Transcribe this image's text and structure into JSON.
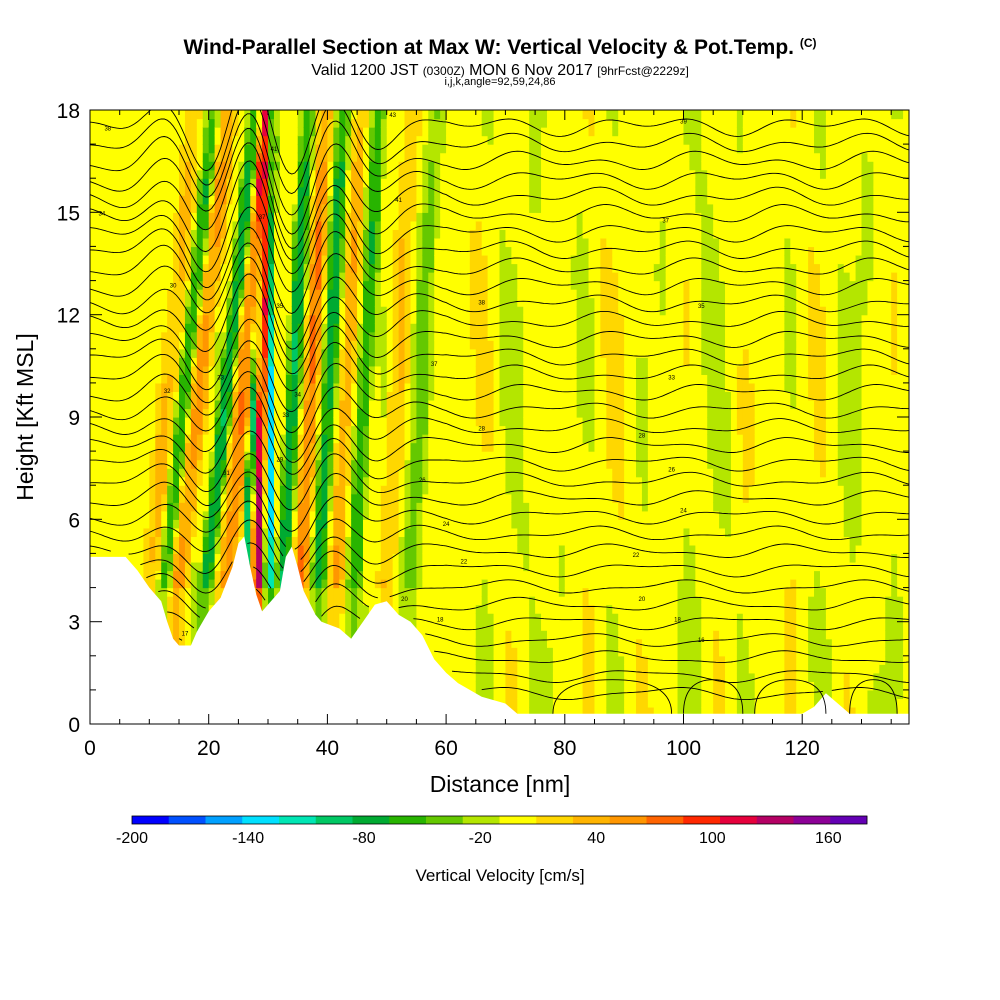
{
  "header": {
    "title": "Wind-Parallel Section at Max W: Vertical Velocity & Pot.Temp.",
    "title_mark": "(C)",
    "valid_prefix": "Valid 1200 JST",
    "valid_utc": "(0300Z)",
    "valid_date": "MON 6 Nov 2017",
    "forecast": "[9hrFcst@2229z]",
    "indices": "i,j,k,angle=92,59,24,86"
  },
  "chart_data": {
    "type": "heatmap",
    "xlabel": "Distance [nm]",
    "ylabel": "Height [Kft MSL]",
    "xlim": [
      0,
      138
    ],
    "ylim": [
      0,
      18
    ],
    "x_ticks": [
      0,
      20,
      40,
      60,
      80,
      100,
      120
    ],
    "y_ticks": [
      0,
      3,
      6,
      9,
      12,
      15,
      18
    ],
    "colorbar": {
      "label": "Vertical Velocity [cm/s]",
      "tick_labels": [
        -200,
        -140,
        -80,
        -20,
        40,
        100,
        160
      ],
      "min": -200,
      "max": 180,
      "step": 20,
      "colors": [
        "#0000ff",
        "#0050ff",
        "#00a0ff",
        "#00e0ff",
        "#00e6b4",
        "#00c864",
        "#00aa32",
        "#28b400",
        "#64c800",
        "#b4e600",
        "#ffff00",
        "#ffd700",
        "#ffb400",
        "#ff9600",
        "#ff6400",
        "#ff2800",
        "#e6003c",
        "#b40064",
        "#8c0096",
        "#6400b4"
      ]
    },
    "terrain_kft": [
      [
        0,
        4.9
      ],
      [
        6,
        4.9
      ],
      [
        8,
        4.5
      ],
      [
        10,
        4.0
      ],
      [
        12,
        3.6
      ],
      [
        13,
        3.0
      ],
      [
        14,
        2.5
      ],
      [
        15,
        2.3
      ],
      [
        17,
        2.3
      ],
      [
        18,
        2.7
      ],
      [
        20,
        3.3
      ],
      [
        22,
        3.7
      ],
      [
        24,
        4.6
      ],
      [
        25,
        5.3
      ],
      [
        26,
        5.5
      ],
      [
        27,
        4.6
      ],
      [
        28,
        3.8
      ],
      [
        29,
        3.3
      ],
      [
        30,
        3.5
      ],
      [
        32,
        3.9
      ],
      [
        33,
        4.9
      ],
      [
        34,
        5.2
      ],
      [
        35,
        4.6
      ],
      [
        36,
        3.9
      ],
      [
        38,
        3.2
      ],
      [
        39,
        3.0
      ],
      [
        42,
        2.8
      ],
      [
        44,
        2.5
      ],
      [
        46,
        3.0
      ],
      [
        48,
        3.5
      ],
      [
        50,
        3.6
      ],
      [
        52,
        3.2
      ],
      [
        54,
        3.0
      ],
      [
        56,
        2.6
      ],
      [
        58,
        1.9
      ],
      [
        60,
        1.5
      ],
      [
        62,
        1.2
      ],
      [
        66,
        0.8
      ],
      [
        70,
        0.6
      ],
      [
        72,
        0.3
      ],
      [
        120,
        0.3
      ],
      [
        122,
        0.5
      ],
      [
        124,
        0.9
      ],
      [
        126,
        0.6
      ],
      [
        128,
        0.3
      ],
      [
        138,
        0.3
      ]
    ],
    "updraft_bands": [
      {
        "x0": 8,
        "x1": 12,
        "tilt": 0.55,
        "w": 35
      },
      {
        "x0": 13,
        "x1": 17,
        "tilt": 0.6,
        "w": 60
      },
      {
        "x0": 21,
        "x1": 25,
        "tilt": 0.5,
        "w": 70
      },
      {
        "x0": 27,
        "x1": 30,
        "tilt": 0.1,
        "w": 140
      },
      {
        "x0": 34,
        "x1": 37,
        "tilt": 0.3,
        "w": 70
      },
      {
        "x0": 40,
        "x1": 43,
        "tilt": 0.3,
        "w": 50
      },
      {
        "x0": 48,
        "x1": 52,
        "tilt": 0.3,
        "w": 35
      }
    ],
    "downdraft_bands": [
      {
        "x0": 11,
        "x1": 14,
        "tilt": 0.6,
        "w": -60
      },
      {
        "x0": 18,
        "x1": 21,
        "tilt": 0.6,
        "w": -80
      },
      {
        "x0": 25,
        "x1": 27,
        "tilt": 0.3,
        "w": -100
      },
      {
        "x0": 29,
        "x1": 31,
        "tilt": 0.05,
        "w": -160
      },
      {
        "x0": 31,
        "x1": 34,
        "tilt": 0.3,
        "w": -90
      },
      {
        "x0": 37,
        "x1": 40,
        "tilt": 0.3,
        "w": -80
      },
      {
        "x0": 43,
        "x1": 46,
        "tilt": 0.3,
        "w": -60
      },
      {
        "x0": 52,
        "x1": 56,
        "tilt": 0.3,
        "w": -40
      }
    ],
    "theta_contours": {
      "start_kft": 0.9,
      "spacing_kft": 0.52,
      "count": 33,
      "labels": [
        {
          "x": 3,
          "y": 17.4,
          "text": "38"
        },
        {
          "x": 2,
          "y": 14.9,
          "text": "34"
        },
        {
          "x": 14,
          "y": 12.8,
          "text": "30"
        },
        {
          "x": 13,
          "y": 9.7,
          "text": "32"
        },
        {
          "x": 22,
          "y": 10.1,
          "text": "33"
        },
        {
          "x": 23,
          "y": 7.3,
          "text": "31"
        },
        {
          "x": 32,
          "y": 12.2,
          "text": "35"
        },
        {
          "x": 35,
          "y": 9.6,
          "text": "34"
        },
        {
          "x": 33,
          "y": 9.0,
          "text": "33"
        },
        {
          "x": 32,
          "y": 7.7,
          "text": "29"
        },
        {
          "x": 31,
          "y": 16.8,
          "text": "41"
        },
        {
          "x": 29,
          "y": 14.8,
          "text": "37"
        },
        {
          "x": 51,
          "y": 17.8,
          "text": "43"
        },
        {
          "x": 52,
          "y": 15.3,
          "text": "41"
        },
        {
          "x": 66,
          "y": 12.3,
          "text": "38"
        },
        {
          "x": 58,
          "y": 10.5,
          "text": "37"
        },
        {
          "x": 66,
          "y": 8.6,
          "text": "28"
        },
        {
          "x": 56,
          "y": 7.1,
          "text": "26"
        },
        {
          "x": 60,
          "y": 5.8,
          "text": "24"
        },
        {
          "x": 63,
          "y": 4.7,
          "text": "22"
        },
        {
          "x": 53,
          "y": 3.6,
          "text": "20"
        },
        {
          "x": 59,
          "y": 3.0,
          "text": "18"
        },
        {
          "x": 16,
          "y": 2.6,
          "text": "17"
        },
        {
          "x": 100,
          "y": 17.6,
          "text": "39"
        },
        {
          "x": 97,
          "y": 14.7,
          "text": "37"
        },
        {
          "x": 103,
          "y": 12.2,
          "text": "35"
        },
        {
          "x": 98,
          "y": 10.1,
          "text": "33"
        },
        {
          "x": 93,
          "y": 8.4,
          "text": "28"
        },
        {
          "x": 98,
          "y": 7.4,
          "text": "26"
        },
        {
          "x": 100,
          "y": 6.2,
          "text": "24"
        },
        {
          "x": 92,
          "y": 4.9,
          "text": "22"
        },
        {
          "x": 93,
          "y": 3.6,
          "text": "20"
        },
        {
          "x": 99,
          "y": 3.0,
          "text": "18"
        },
        {
          "x": 103,
          "y": 2.4,
          "text": "16"
        }
      ]
    }
  }
}
